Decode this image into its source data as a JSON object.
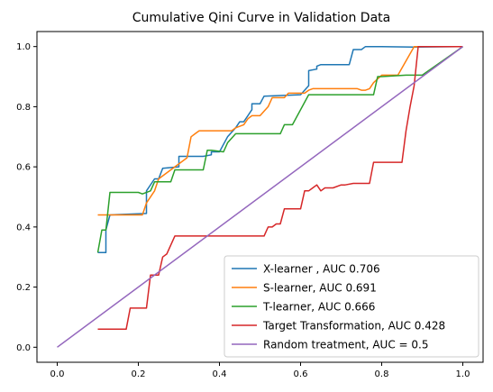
{
  "chart_data": {
    "type": "line",
    "title": "Cumulative Qini Curve in Validation Data",
    "xlabel": "",
    "ylabel": "",
    "xlim": [
      -0.05,
      1.05
    ],
    "ylim": [
      -0.05,
      1.05
    ],
    "x_ticks": [
      0.0,
      0.2,
      0.4,
      0.6,
      0.8,
      1.0
    ],
    "x_tick_labels": [
      "0.0",
      "0.2",
      "0.4",
      "0.6",
      "0.8",
      "1.0"
    ],
    "y_ticks": [
      0.0,
      0.2,
      0.4,
      0.6,
      0.8,
      1.0
    ],
    "y_tick_labels": [
      "0.0",
      "0.2",
      "0.4",
      "0.6",
      "0.8",
      "1.0"
    ],
    "grid": false,
    "legend_position": "lower-right",
    "series": [
      {
        "name": "X-learner , AUC 0.706",
        "color": "#1f77b4",
        "x": [
          0.1,
          0.12,
          0.12,
          0.13,
          0.22,
          0.22,
          0.24,
          0.25,
          0.26,
          0.3,
          0.3,
          0.36,
          0.38,
          0.38,
          0.4,
          0.42,
          0.44,
          0.45,
          0.46,
          0.47,
          0.48,
          0.48,
          0.5,
          0.51,
          0.51,
          0.6,
          0.62,
          0.62,
          0.64,
          0.64,
          0.65,
          0.72,
          0.73,
          0.75,
          0.76,
          0.8,
          0.88,
          1.0
        ],
        "y": [
          0.315,
          0.315,
          0.39,
          0.44,
          0.445,
          0.52,
          0.56,
          0.56,
          0.595,
          0.6,
          0.635,
          0.635,
          0.64,
          0.65,
          0.65,
          0.7,
          0.73,
          0.75,
          0.75,
          0.77,
          0.79,
          0.81,
          0.81,
          0.835,
          0.835,
          0.84,
          0.87,
          0.92,
          0.925,
          0.935,
          0.94,
          0.94,
          0.99,
          0.99,
          1.0,
          1.0,
          0.998,
          1.0
        ]
      },
      {
        "name": "S-learner, AUC 0.691",
        "color": "#ff7f0e",
        "x": [
          0.1,
          0.14,
          0.21,
          0.22,
          0.24,
          0.25,
          0.28,
          0.32,
          0.33,
          0.34,
          0.35,
          0.43,
          0.44,
          0.46,
          0.47,
          0.48,
          0.49,
          0.5,
          0.52,
          0.53,
          0.56,
          0.57,
          0.61,
          0.62,
          0.63,
          0.64,
          0.71,
          0.74,
          0.75,
          0.76,
          0.77,
          0.78,
          0.8,
          0.84,
          0.88,
          1.0
        ],
        "y": [
          0.44,
          0.44,
          0.44,
          0.48,
          0.52,
          0.56,
          0.59,
          0.63,
          0.7,
          0.71,
          0.72,
          0.72,
          0.73,
          0.74,
          0.76,
          0.77,
          0.77,
          0.77,
          0.8,
          0.83,
          0.83,
          0.845,
          0.845,
          0.855,
          0.86,
          0.86,
          0.86,
          0.86,
          0.855,
          0.855,
          0.86,
          0.88,
          0.905,
          0.905,
          1.0,
          1.0
        ]
      },
      {
        "name": "T-learner, AUC 0.666",
        "color": "#2ca02c",
        "x": [
          0.1,
          0.11,
          0.12,
          0.13,
          0.2,
          0.21,
          0.23,
          0.24,
          0.25,
          0.28,
          0.29,
          0.36,
          0.37,
          0.38,
          0.41,
          0.42,
          0.44,
          0.49,
          0.52,
          0.55,
          0.56,
          0.58,
          0.62,
          0.71,
          0.71,
          0.77,
          0.78,
          0.79,
          0.8,
          0.86,
          0.87,
          0.88,
          0.9,
          1.0
        ],
        "y": [
          0.315,
          0.39,
          0.39,
          0.515,
          0.515,
          0.51,
          0.52,
          0.55,
          0.55,
          0.55,
          0.59,
          0.59,
          0.655,
          0.655,
          0.65,
          0.68,
          0.71,
          0.71,
          0.71,
          0.71,
          0.74,
          0.74,
          0.84,
          0.84,
          0.84,
          0.84,
          0.84,
          0.9,
          0.9,
          0.905,
          0.905,
          0.905,
          0.905,
          1.0
        ]
      },
      {
        "name": "Target Transformation, AUC 0.428",
        "color": "#d62728",
        "x": [
          0.1,
          0.17,
          0.18,
          0.22,
          0.23,
          0.25,
          0.26,
          0.27,
          0.28,
          0.29,
          0.39,
          0.48,
          0.51,
          0.52,
          0.53,
          0.54,
          0.55,
          0.56,
          0.57,
          0.58,
          0.59,
          0.6,
          0.61,
          0.62,
          0.63,
          0.64,
          0.65,
          0.66,
          0.67,
          0.68,
          0.7,
          0.71,
          0.73,
          0.74,
          0.77,
          0.78,
          0.85,
          0.86,
          0.87,
          0.88,
          0.89,
          1.0
        ],
        "y": [
          0.06,
          0.06,
          0.13,
          0.13,
          0.24,
          0.24,
          0.3,
          0.31,
          0.34,
          0.37,
          0.37,
          0.37,
          0.37,
          0.4,
          0.4,
          0.41,
          0.41,
          0.46,
          0.46,
          0.46,
          0.46,
          0.46,
          0.52,
          0.52,
          0.53,
          0.54,
          0.52,
          0.53,
          0.53,
          0.53,
          0.54,
          0.54,
          0.545,
          0.545,
          0.545,
          0.615,
          0.615,
          0.72,
          0.8,
          0.87,
          1.0,
          1.0
        ]
      },
      {
        "name": "Random treatment, AUC = 0.5",
        "color": "#9467bd",
        "x": [
          0.0,
          1.0
        ],
        "y": [
          0.0,
          1.0
        ]
      }
    ]
  }
}
